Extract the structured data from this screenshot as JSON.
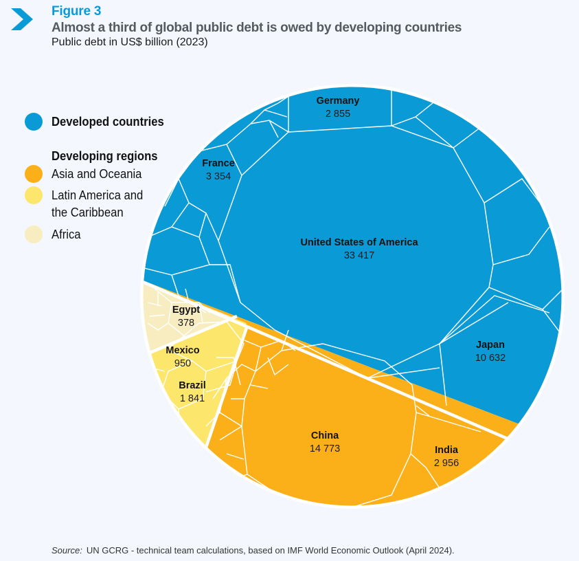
{
  "header": {
    "figure_label": "Figure 3",
    "title": "Almost a third of global public debt is owed by developing countries",
    "subtitle": "Public debt in US$ billion (2023)",
    "icon": "chevron-right-icon"
  },
  "legend": {
    "developed": {
      "label": "Developed countries",
      "color": "#0a9bd6"
    },
    "heading": "Developing regions",
    "regions": [
      {
        "label": "Asia and Oceania",
        "color": "#fbb01a"
      },
      {
        "label": "Latin America and\nthe Caribbean",
        "line1": "Latin America and",
        "line2": "the Caribbean",
        "color": "#fde66c"
      },
      {
        "label": "Africa",
        "color": "#f8edc0"
      }
    ]
  },
  "chart_data": {
    "type": "voronoi-treemap",
    "title": "Almost a third of global public debt is owed by developing countries",
    "subtitle": "Public debt in US$ billion (2023)",
    "unit": "US$ billion",
    "year": 2023,
    "groups": [
      {
        "name": "Developed countries",
        "color": "#0a9bd6"
      },
      {
        "name": "Asia and Oceania",
        "color": "#fbb01a"
      },
      {
        "name": "Latin America and the Caribbean",
        "color": "#fde66c"
      },
      {
        "name": "Africa",
        "color": "#f8edc0"
      }
    ],
    "labeled_cells": [
      {
        "name": "United States of America",
        "value": 33417,
        "display": "33 417",
        "group": "Developed countries"
      },
      {
        "name": "Japan",
        "value": 10632,
        "display": "10 632",
        "group": "Developed countries"
      },
      {
        "name": "France",
        "value": 3354,
        "display": "3 354",
        "group": "Developed countries"
      },
      {
        "name": "Germany",
        "value": 2855,
        "display": "2 855",
        "group": "Developed countries"
      },
      {
        "name": "China",
        "value": 14773,
        "display": "14 773",
        "group": "Asia and Oceania"
      },
      {
        "name": "India",
        "value": 2956,
        "display": "2 956",
        "group": "Asia and Oceania"
      },
      {
        "name": "Brazil",
        "value": 1841,
        "display": "1 841",
        "group": "Latin America and the Caribbean"
      },
      {
        "name": "Mexico",
        "value": 950,
        "display": "950",
        "group": "Latin America and the Caribbean"
      },
      {
        "name": "Egypt",
        "value": 378,
        "display": "378",
        "group": "Africa"
      }
    ]
  },
  "source": {
    "prefix": "Source:",
    "text": "UN GCRG - technical team calculations, based on IMF World Economic Outlook (April 2024)."
  }
}
